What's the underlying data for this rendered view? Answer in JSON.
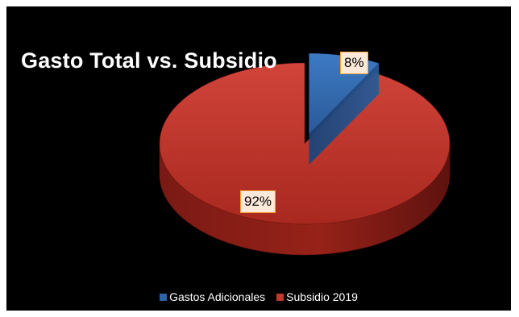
{
  "chart_data": {
    "type": "pie",
    "title": "Gasto Total vs. Subsidio",
    "three_d": true,
    "exploded_slice": "Gastos Adicionales",
    "slices": [
      {
        "name": "Gastos Adicionales",
        "label": "8%",
        "value": 8,
        "color": "#2e63a8"
      },
      {
        "name": "Subsidio 2019",
        "label": "92%",
        "value": 92,
        "color": "#c0392b"
      }
    ],
    "legend_position": "bottom",
    "background": "#000000"
  }
}
